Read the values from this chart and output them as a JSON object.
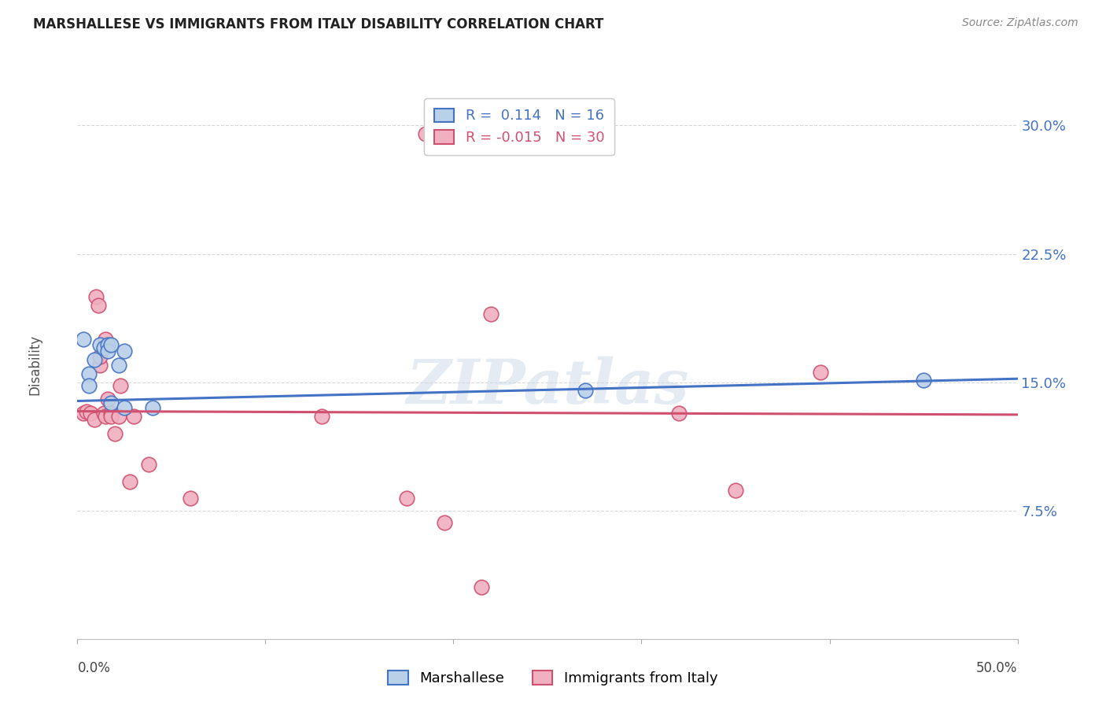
{
  "title": "MARSHALLESE VS IMMIGRANTS FROM ITALY DISABILITY CORRELATION CHART",
  "source": "Source: ZipAtlas.com",
  "ylabel": "Disability",
  "watermark": "ZIPatlas",
  "xlim": [
    0.0,
    0.5
  ],
  "ylim": [
    0.0,
    0.32
  ],
  "yticks": [
    0.075,
    0.15,
    0.225,
    0.3
  ],
  "ytick_labels": [
    "7.5%",
    "15.0%",
    "22.5%",
    "30.0%"
  ],
  "blue_R": "0.114",
  "blue_N": "16",
  "pink_R": "-0.015",
  "pink_N": "30",
  "blue_color": "#b8d0e8",
  "pink_color": "#f0b0c0",
  "blue_line_color": "#4472c4",
  "pink_line_color": "#d05070",
  "legend_label_blue": "Marshallese",
  "legend_label_pink": "Immigrants from Italy",
  "blue_points_x": [
    0.003,
    0.006,
    0.006,
    0.009,
    0.012,
    0.014,
    0.016,
    0.016,
    0.018,
    0.018,
    0.022,
    0.025,
    0.025,
    0.04,
    0.27,
    0.45
  ],
  "blue_points_y": [
    0.175,
    0.155,
    0.148,
    0.163,
    0.172,
    0.17,
    0.172,
    0.168,
    0.172,
    0.138,
    0.16,
    0.168,
    0.135,
    0.135,
    0.145,
    0.151
  ],
  "pink_points_x": [
    0.003,
    0.005,
    0.007,
    0.009,
    0.01,
    0.011,
    0.012,
    0.012,
    0.014,
    0.015,
    0.015,
    0.016,
    0.018,
    0.018,
    0.02,
    0.022,
    0.023,
    0.028,
    0.03,
    0.038,
    0.06,
    0.13,
    0.175,
    0.195,
    0.215,
    0.32,
    0.35,
    0.395,
    0.185,
    0.22
  ],
  "pink_points_y": [
    0.132,
    0.133,
    0.132,
    0.128,
    0.2,
    0.195,
    0.16,
    0.165,
    0.132,
    0.175,
    0.13,
    0.14,
    0.132,
    0.13,
    0.12,
    0.13,
    0.148,
    0.092,
    0.13,
    0.102,
    0.082,
    0.13,
    0.082,
    0.068,
    0.03,
    0.132,
    0.087,
    0.156,
    0.295,
    0.19
  ],
  "blue_line_x": [
    0.0,
    0.5
  ],
  "blue_line_y": [
    0.139,
    0.152
  ],
  "pink_line_x": [
    0.0,
    0.5
  ],
  "pink_line_y": [
    0.133,
    0.131
  ],
  "grid_color": "#d8d8d8",
  "xtick_positions": [
    0.0,
    0.1,
    0.2,
    0.3,
    0.4,
    0.5
  ]
}
